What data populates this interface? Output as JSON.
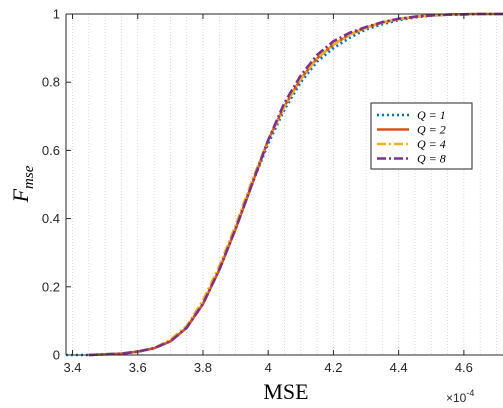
{
  "chart_data": {
    "type": "line",
    "xlabel": "MSE",
    "ylabel": "F",
    "ylabel_subscript": "mse",
    "x_multiplier_label": "×10",
    "x_multiplier_exp": "-4",
    "xlim": [
      3.38,
      4.72
    ],
    "ylim": [
      0,
      1
    ],
    "x_ticks": [
      3.4,
      3.6,
      3.8,
      4.0,
      4.2,
      4.4,
      4.6
    ],
    "x_tick_labels": [
      "3.4",
      "3.6",
      "3.8",
      "4",
      "4.2",
      "4.4",
      "4.6"
    ],
    "y_ticks": [
      0,
      0.2,
      0.4,
      0.6,
      0.8,
      1
    ],
    "y_tick_labels": [
      "0",
      "0.2",
      "0.4",
      "0.6",
      "0.8",
      "1"
    ],
    "grid": "x-minor-dotted",
    "legend_position": "right",
    "series": [
      {
        "name": "Q = 1",
        "color": "#0072BD",
        "dash": "dotted",
        "x": [
          3.38,
          3.45,
          3.5,
          3.55,
          3.6,
          3.65,
          3.7,
          3.75,
          3.8,
          3.85,
          3.9,
          3.95,
          4.0,
          4.05,
          4.1,
          4.15,
          4.2,
          4.25,
          4.3,
          4.35,
          4.4,
          4.45,
          4.5,
          4.55,
          4.6,
          4.65,
          4.72
        ],
        "y": [
          0.0,
          0.0,
          0.002,
          0.004,
          0.01,
          0.02,
          0.04,
          0.08,
          0.15,
          0.25,
          0.37,
          0.5,
          0.62,
          0.72,
          0.8,
          0.86,
          0.9,
          0.93,
          0.955,
          0.97,
          0.982,
          0.99,
          0.995,
          0.998,
          0.999,
          1.0,
          1.0
        ]
      },
      {
        "name": "Q = 2",
        "color": "#D95319",
        "dash": "solid",
        "x": [
          3.45,
          3.5,
          3.55,
          3.6,
          3.65,
          3.7,
          3.75,
          3.8,
          3.85,
          3.9,
          3.95,
          4.0,
          4.05,
          4.1,
          4.15,
          4.2,
          4.25,
          4.3,
          4.35,
          4.4,
          4.45,
          4.5,
          4.55,
          4.6,
          4.65,
          4.72
        ],
        "y": [
          0.0,
          0.002,
          0.004,
          0.01,
          0.02,
          0.04,
          0.08,
          0.15,
          0.25,
          0.37,
          0.5,
          0.63,
          0.73,
          0.81,
          0.87,
          0.91,
          0.94,
          0.96,
          0.975,
          0.985,
          0.992,
          0.996,
          0.998,
          0.999,
          1.0,
          1.0
        ]
      },
      {
        "name": "Q = 4",
        "color": "#EDB120",
        "dash": "dashdot",
        "x": [
          3.45,
          3.5,
          3.55,
          3.6,
          3.65,
          3.7,
          3.75,
          3.8,
          3.85,
          3.9,
          3.95,
          4.0,
          4.05,
          4.1,
          4.15,
          4.2,
          4.25,
          4.3,
          4.35,
          4.4,
          4.45,
          4.5,
          4.55,
          4.6,
          4.65,
          4.72
        ],
        "y": [
          0.0,
          0.002,
          0.004,
          0.01,
          0.02,
          0.045,
          0.085,
          0.16,
          0.26,
          0.38,
          0.51,
          0.63,
          0.73,
          0.81,
          0.87,
          0.91,
          0.94,
          0.96,
          0.975,
          0.985,
          0.992,
          0.996,
          0.998,
          0.999,
          1.0,
          1.0
        ]
      },
      {
        "name": "Q = 8",
        "color": "#7E2F8E",
        "dash": "dashdot",
        "x": [
          3.45,
          3.5,
          3.55,
          3.6,
          3.65,
          3.7,
          3.75,
          3.8,
          3.85,
          3.9,
          3.95,
          4.0,
          4.05,
          4.1,
          4.15,
          4.2,
          4.25,
          4.3,
          4.35,
          4.4,
          4.45,
          4.5,
          4.55,
          4.6,
          4.65,
          4.72
        ],
        "y": [
          0.0,
          0.002,
          0.004,
          0.01,
          0.02,
          0.04,
          0.08,
          0.15,
          0.25,
          0.37,
          0.5,
          0.63,
          0.74,
          0.82,
          0.88,
          0.92,
          0.945,
          0.962,
          0.976,
          0.986,
          0.992,
          0.996,
          0.998,
          0.999,
          1.0,
          1.0
        ]
      }
    ]
  }
}
